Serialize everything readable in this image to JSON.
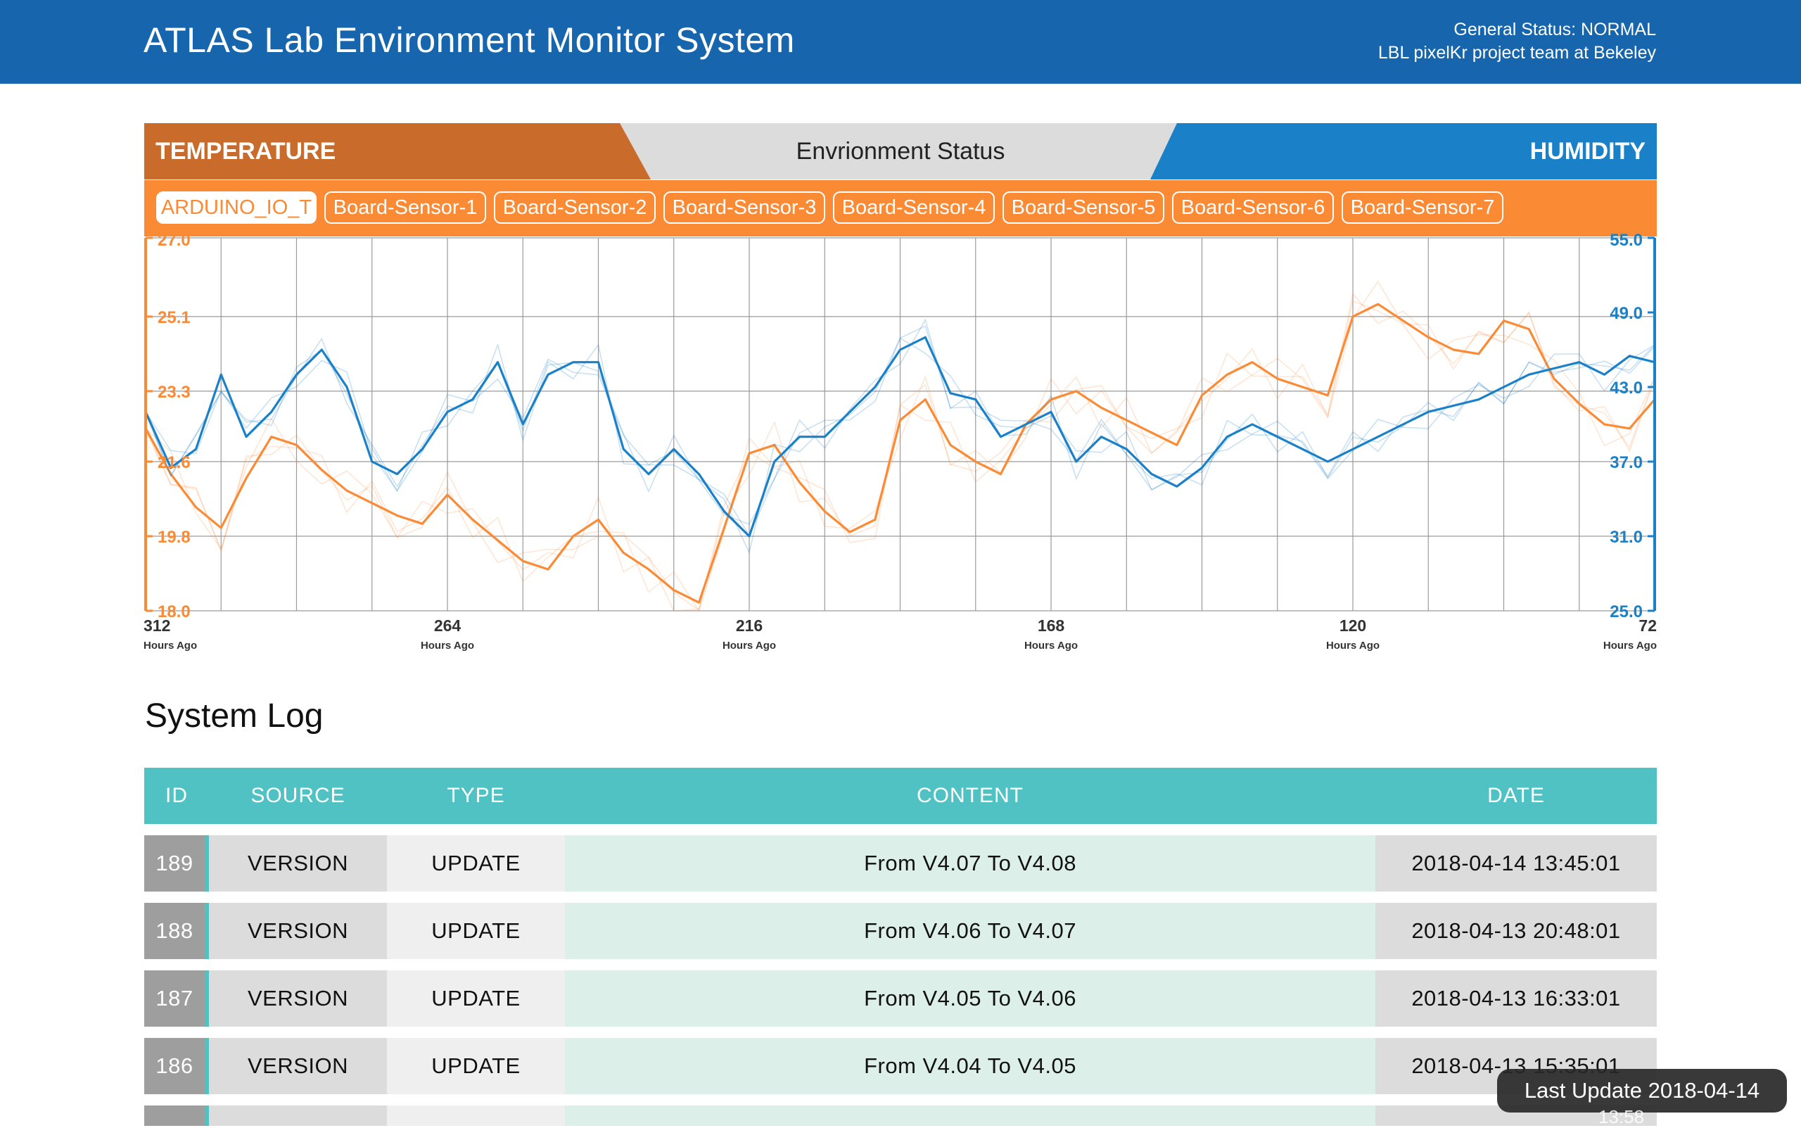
{
  "header": {
    "title": "ATLAS Lab Environment Monitor System",
    "status_line": "General Status: NORMAL",
    "team_line": "LBL pixelKr project team at Bekeley"
  },
  "env_bar": {
    "temperature_label": "TEMPERATURE",
    "center_label": "Envrionment Status",
    "humidity_label": "HUMIDITY"
  },
  "sensors": [
    "ARDUINO_IO_T",
    "Board-Sensor-1",
    "Board-Sensor-2",
    "Board-Sensor-3",
    "Board-Sensor-4",
    "Board-Sensor-5",
    "Board-Sensor-6",
    "Board-Sensor-7"
  ],
  "active_sensor": "ARDUINO_IO_T",
  "colors": {
    "header": "#1766ad",
    "temperature": "#fb8a35",
    "temperature_dark": "#c96c2b",
    "humidity": "#1a80c8",
    "table_header": "#50c2c3"
  },
  "chart_data": {
    "type": "line",
    "x_unit_label": "Hours Ago",
    "x_ticks": [
      312,
      264,
      216,
      168,
      120,
      72
    ],
    "xlim": [
      312,
      72
    ],
    "y_left": {
      "series": "temperature",
      "ticks": [
        "27.0",
        "25.1",
        "23.3",
        "21.6",
        "19.8",
        "18.0"
      ],
      "ylim": [
        18.0,
        27.0
      ]
    },
    "y_right": {
      "series": "humidity",
      "ticks": [
        "55.0",
        "49.0",
        "43.0",
        "37.0",
        "31.0",
        "25.0"
      ],
      "ylim": [
        25.0,
        55.0
      ]
    },
    "grid": true,
    "series": [
      {
        "axis": "left",
        "x": [
          312,
          308,
          304,
          300,
          296,
          292,
          288,
          284,
          280,
          276,
          272,
          268,
          264,
          260,
          256,
          252,
          248,
          244,
          240,
          236,
          232,
          228,
          224,
          220,
          216,
          212,
          208,
          204,
          200,
          196,
          192,
          188,
          184,
          180,
          176,
          172,
          168,
          164,
          160,
          156,
          152,
          148,
          144,
          140,
          136,
          132,
          128,
          124,
          120,
          116,
          112,
          108,
          104,
          100,
          96,
          92,
          88,
          84,
          80,
          76,
          72
        ],
        "values": [
          22.4,
          21.3,
          20.5,
          20.0,
          21.2,
          22.2,
          22.0,
          21.4,
          20.9,
          20.6,
          20.3,
          20.1,
          20.8,
          20.2,
          19.7,
          19.2,
          19.0,
          19.8,
          20.2,
          19.4,
          19.0,
          18.5,
          18.2,
          20.0,
          21.8,
          22.0,
          21.1,
          20.4,
          19.9,
          20.2,
          22.6,
          23.1,
          22.0,
          21.6,
          21.3,
          22.5,
          23.1,
          23.3,
          22.9,
          22.6,
          22.3,
          22.0,
          23.2,
          23.7,
          24.0,
          23.6,
          23.4,
          23.2,
          25.1,
          25.4,
          25.0,
          24.6,
          24.3,
          24.2,
          25.0,
          24.8,
          23.6,
          23.0,
          22.5,
          22.4,
          23.1
        ]
      },
      {
        "axis": "right",
        "x": [
          312,
          308,
          304,
          300,
          296,
          292,
          288,
          284,
          280,
          276,
          272,
          268,
          264,
          260,
          256,
          252,
          248,
          244,
          240,
          236,
          232,
          228,
          224,
          220,
          216,
          212,
          208,
          204,
          200,
          196,
          192,
          188,
          184,
          180,
          176,
          172,
          168,
          164,
          160,
          156,
          152,
          148,
          144,
          140,
          136,
          132,
          128,
          124,
          120,
          116,
          112,
          108,
          104,
          100,
          96,
          92,
          88,
          84,
          80,
          76,
          72
        ],
        "values": [
          41.0,
          36.5,
          38.0,
          44.0,
          39.0,
          41.0,
          44.0,
          46.0,
          43.0,
          37.0,
          36.0,
          38.0,
          41.0,
          42.0,
          45.0,
          40.0,
          44.0,
          45.0,
          45.0,
          38.0,
          36.0,
          38.0,
          36.0,
          33.0,
          31.0,
          37.0,
          39.0,
          39.0,
          41.0,
          43.0,
          46.0,
          47.0,
          42.5,
          42.0,
          39.0,
          40.0,
          41.0,
          37.0,
          39.0,
          38.0,
          36.0,
          35.0,
          36.5,
          39.0,
          40.0,
          39.0,
          38.0,
          37.0,
          38.0,
          39.0,
          40.0,
          41.0,
          41.5,
          42.0,
          43.0,
          44.0,
          44.5,
          45.0,
          44.0,
          45.5,
          45.0
        ]
      }
    ]
  },
  "system_log": {
    "title": "System Log",
    "columns": [
      "ID",
      "SOURCE",
      "TYPE",
      "CONTENT",
      "DATE"
    ],
    "rows": [
      {
        "id": "189",
        "source": "VERSION",
        "type": "UPDATE",
        "content": "From V4.07 To V4.08",
        "date": "2018-04-14 13:45:01"
      },
      {
        "id": "188",
        "source": "VERSION",
        "type": "UPDATE",
        "content": "From V4.06 To V4.07",
        "date": "2018-04-13 20:48:01"
      },
      {
        "id": "187",
        "source": "VERSION",
        "type": "UPDATE",
        "content": "From V4.05 To V4.06",
        "date": "2018-04-13 16:33:01"
      },
      {
        "id": "186",
        "source": "VERSION",
        "type": "UPDATE",
        "content": "From V4.04 To V4.05",
        "date": "2018-04-13 15:35:01"
      },
      {
        "id": "",
        "source": "",
        "type": "",
        "content": "",
        "date": ""
      }
    ]
  },
  "toast": {
    "text": "Last Update 2018-04-14",
    "time": "13:58"
  }
}
